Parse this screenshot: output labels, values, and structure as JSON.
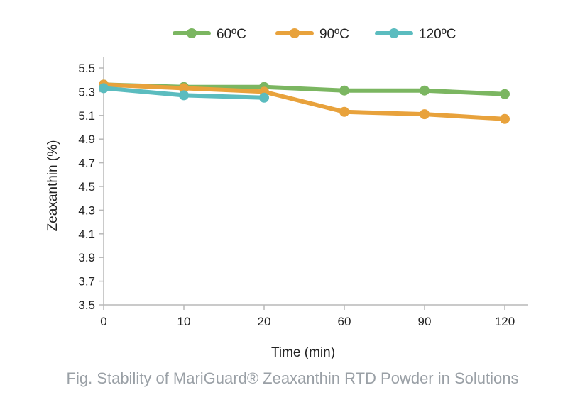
{
  "chart_data": {
    "type": "line",
    "categories": [
      "0",
      "10",
      "20",
      "60",
      "90",
      "120"
    ],
    "series": [
      {
        "name": "60ºC",
        "color": "#7bb661",
        "values": [
          5.36,
          5.34,
          5.34,
          5.31,
          5.31,
          5.28
        ]
      },
      {
        "name": "90ºC",
        "color": "#e8a23c",
        "values": [
          5.36,
          5.33,
          5.3,
          5.13,
          5.11,
          5.07
        ]
      },
      {
        "name": "120ºC",
        "color": "#5bbcbf",
        "values": [
          5.33,
          5.27,
          5.25,
          null,
          null,
          null
        ]
      }
    ],
    "xlabel": "Time (min)",
    "ylabel": "Zeaxanthin (%)",
    "ylim": [
      3.5,
      5.5
    ],
    "yticks": [
      "3.5",
      "3.7",
      "3.9",
      "4.1",
      "4.3",
      "4.5",
      "4.7",
      "4.9",
      "5.1",
      "5.3",
      "5.5"
    ],
    "legend_position": "top",
    "grid": false
  },
  "caption": "Fig. Stability of MariGuard® Zeaxanthin RTD Powder in Solutions"
}
